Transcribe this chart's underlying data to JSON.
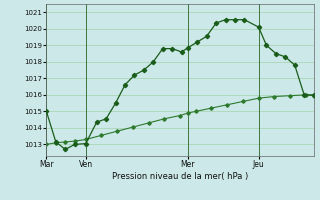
{
  "xlabel": "Pression niveau de la mer( hPa )",
  "ylim": [
    1012.3,
    1021.5
  ],
  "yticks": [
    1013,
    1014,
    1015,
    1016,
    1017,
    1018,
    1019,
    1020,
    1021
  ],
  "background_color": "#cce8e8",
  "grid_color": "#99cc99",
  "line_color1": "#1a5c1a",
  "line_color2": "#2d7a2d",
  "day_labels": [
    "Mar",
    "Ven",
    "Mer",
    "Jeu"
  ],
  "day_positions": [
    0,
    2.5,
    9,
    13.5
  ],
  "xlim": [
    0,
    17
  ],
  "line1_x": [
    0,
    0.6,
    1.2,
    1.8,
    2.5,
    3.2,
    3.8,
    4.4,
    5.0,
    5.6,
    6.2,
    6.8,
    7.4,
    8.0,
    8.6,
    9.0,
    9.6,
    10.2,
    10.8,
    11.4,
    12.0,
    12.6,
    13.5,
    14.0,
    14.6,
    15.2,
    15.8,
    16.4,
    17.0
  ],
  "line1_y": [
    1015.0,
    1013.15,
    1012.7,
    1013.0,
    1013.05,
    1014.35,
    1014.55,
    1015.5,
    1016.6,
    1017.2,
    1017.5,
    1018.0,
    1018.8,
    1018.8,
    1018.6,
    1018.85,
    1019.2,
    1019.55,
    1020.35,
    1020.55,
    1020.55,
    1020.55,
    1020.1,
    1019.0,
    1018.5,
    1018.3,
    1017.8,
    1016.0,
    1016.0
  ],
  "line2_x": [
    0,
    0.6,
    1.2,
    1.8,
    2.5,
    3.5,
    4.5,
    5.5,
    6.5,
    7.5,
    8.5,
    9.0,
    9.5,
    10.5,
    11.5,
    12.5,
    13.5,
    14.5,
    15.5,
    16.5,
    17.0
  ],
  "line2_y": [
    1013.0,
    1013.1,
    1013.15,
    1013.2,
    1013.3,
    1013.55,
    1013.8,
    1014.05,
    1014.3,
    1014.55,
    1014.75,
    1014.9,
    1015.0,
    1015.2,
    1015.4,
    1015.6,
    1015.8,
    1015.9,
    1015.95,
    1016.0,
    1015.95
  ]
}
